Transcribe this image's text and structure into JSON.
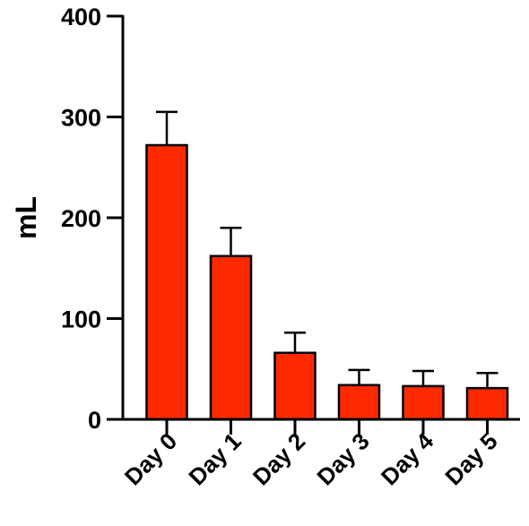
{
  "chart_data": {
    "type": "bar",
    "title": "",
    "xlabel": "",
    "ylabel": "mL",
    "categories": [
      "Day 0",
      "Day 1",
      "Day 2",
      "Day 3",
      "Day 4",
      "Day 5"
    ],
    "values": [
      272,
      162,
      66,
      34,
      33,
      31
    ],
    "error_upper": [
      305,
      190,
      86,
      49,
      48,
      46
    ],
    "ylim": [
      0,
      400
    ],
    "yticks": [
      "0",
      "100",
      "200",
      "300",
      "400"
    ],
    "grid": false,
    "legend": "none",
    "bar_color": "#ff2a00",
    "edge_color": "#000000"
  }
}
